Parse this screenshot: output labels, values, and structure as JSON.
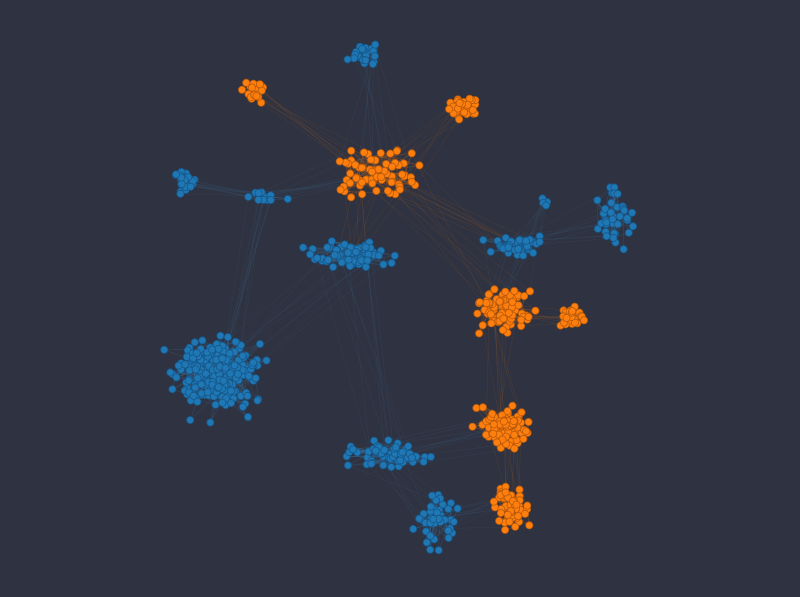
{
  "colors": {
    "background": "#2f3240",
    "group_a": "#1f77b4",
    "group_b": "#ff7f0e",
    "edge_a": "#3f7fae",
    "edge_b": "#d9731c",
    "node_stroke_a": "#16578a",
    "node_stroke_b": "#b85a0a"
  },
  "graph": {
    "type": "force-directed network",
    "group_names": [
      "blue-group",
      "orange-group"
    ],
    "clusters": [
      {
        "id": "blue-top",
        "group": 0,
        "node_count": 24
      },
      {
        "id": "orange-top-left",
        "group": 1,
        "node_count": 22
      },
      {
        "id": "orange-top-right",
        "group": 1,
        "node_count": 38
      },
      {
        "id": "orange-center-top",
        "group": 1,
        "node_count": 70
      },
      {
        "id": "blue-left-upper",
        "group": 0,
        "node_count": 30
      },
      {
        "id": "blue-left-upper-branch",
        "group": 0,
        "node_count": 12
      },
      {
        "id": "blue-center-band",
        "group": 0,
        "node_count": 70
      },
      {
        "id": "blue-left-large",
        "group": 0,
        "node_count": 230
      },
      {
        "id": "blue-right",
        "group": 0,
        "node_count": 40
      },
      {
        "id": "blue-right-hook",
        "group": 0,
        "node_count": 36
      },
      {
        "id": "blue-right-small",
        "group": 0,
        "node_count": 4
      },
      {
        "id": "orange-mid-right",
        "group": 1,
        "node_count": 80
      },
      {
        "id": "orange-mid-right-arm",
        "group": 1,
        "node_count": 30
      },
      {
        "id": "blue-bottom-arc",
        "group": 0,
        "node_count": 60
      },
      {
        "id": "orange-bottom",
        "group": 1,
        "node_count": 90
      },
      {
        "id": "blue-bottom",
        "group": 0,
        "node_count": 45
      },
      {
        "id": "orange-bottom-lower",
        "group": 1,
        "node_count": 60
      }
    ]
  }
}
